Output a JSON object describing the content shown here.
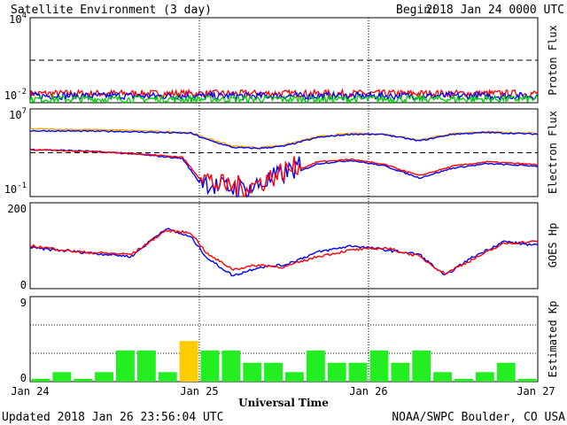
{
  "header": {
    "title": "Satellite Environment (3 day)",
    "begin_label": "Begin:",
    "begin_date": "2018 Jan 24 0000 UTC"
  },
  "footer": {
    "updated": "Updated 2018 Jan 26 23:56:04 UTC",
    "credit": "NOAA/SWPC Boulder, CO USA"
  },
  "x_axis": {
    "label": "Universal Time",
    "ticks": [
      "Jan 24",
      "Jan 25",
      "Jan 26",
      "Jan 27"
    ],
    "range_days": [
      0,
      3
    ],
    "day_dividers": [
      1,
      2
    ]
  },
  "colors": {
    "red": "#ff0000",
    "blue": "#0000ff",
    "green": "#00cc00",
    "orange": "#ffa500",
    "kp_quiet": "#22ee22",
    "kp_unsettled": "#ffcc00"
  },
  "chart_data": [
    {
      "id": "proton",
      "type": "line",
      "ylabel": "Proton Flux",
      "scale": "log",
      "ylim": [
        0.01,
        10000
      ],
      "yticks": [
        {
          "base": "10",
          "exp": "4"
        },
        {
          "base": "10",
          "exp": "-2"
        }
      ],
      "threshold": 10,
      "series": [
        {
          "color": "#ff0000",
          "level": 0.045
        },
        {
          "color": "#0000ff",
          "level": 0.03
        },
        {
          "color": "#00cc00",
          "level": 0.018
        }
      ]
    },
    {
      "id": "electron",
      "type": "line",
      "ylabel": "Electron Flux",
      "scale": "log",
      "ylim": [
        0.1,
        10000000
      ],
      "yticks": [
        {
          "base": "10",
          "exp": "7"
        },
        {
          "base": "10",
          "exp": "-1"
        }
      ],
      "threshold": 1000,
      "series": [
        {
          "color": "#ffa500",
          "x": [
            0,
            0.5,
            0.95,
            1.05,
            1.2,
            1.35,
            1.5,
            1.7,
            1.9,
            2.1,
            2.3,
            2.5,
            2.7,
            3.0
          ],
          "y": [
            150000,
            120000,
            70000,
            20000,
            4000,
            3000,
            5000,
            30000,
            60000,
            50000,
            15000,
            60000,
            80000,
            60000
          ]
        },
        {
          "color": "#0000ff",
          "x": [
            0,
            0.5,
            0.95,
            1.05,
            1.2,
            1.35,
            1.5,
            1.7,
            1.9,
            2.1,
            2.3,
            2.5,
            2.7,
            3.0
          ],
          "y": [
            100000,
            90000,
            60000,
            15000,
            3000,
            2500,
            4000,
            25000,
            50000,
            45000,
            12000,
            50000,
            70000,
            50000
          ]
        },
        {
          "color": "#0000ff",
          "x": [
            0,
            0.3,
            0.6,
            0.9,
            1.0,
            1.1,
            1.3,
            1.5,
            1.7,
            1.9,
            2.1,
            2.3,
            2.5,
            2.7,
            3.0
          ],
          "y": [
            2000,
            1500,
            800,
            300,
            2,
            0.3,
            0.2,
            5,
            100,
            200,
            60,
            5,
            40,
            100,
            60
          ]
        },
        {
          "color": "#ff0000",
          "x": [
            0,
            0.3,
            0.6,
            0.9,
            1.0,
            1.1,
            1.3,
            1.5,
            1.7,
            1.9,
            2.1,
            2.3,
            2.5,
            2.7,
            3.0
          ],
          "y": [
            1800,
            1400,
            900,
            400,
            5,
            0.5,
            0.3,
            8,
            150,
            250,
            80,
            8,
            60,
            150,
            80
          ]
        }
      ]
    },
    {
      "id": "hp",
      "type": "line",
      "ylabel": "GOES Hp",
      "scale": "linear",
      "ylim": [
        0,
        200
      ],
      "yticks": [
        {
          "value": "200"
        },
        {
          "value": "0"
        }
      ],
      "series": [
        {
          "color": "#0000ff",
          "x": [
            0,
            0.3,
            0.6,
            0.8,
            0.95,
            1.05,
            1.2,
            1.35,
            1.5,
            1.7,
            1.9,
            2.1,
            2.3,
            2.45,
            2.6,
            2.8,
            3.0
          ],
          "y": [
            95,
            85,
            75,
            140,
            120,
            70,
            30,
            50,
            55,
            85,
            100,
            90,
            80,
            30,
            70,
            110,
            100
          ]
        },
        {
          "color": "#ff0000",
          "x": [
            0,
            0.3,
            0.6,
            0.8,
            0.95,
            1.05,
            1.2,
            1.35,
            1.5,
            1.7,
            1.9,
            2.1,
            2.3,
            2.45,
            2.6,
            2.8,
            3.0
          ],
          "y": [
            100,
            85,
            80,
            135,
            130,
            80,
            45,
            55,
            50,
            75,
            90,
            95,
            75,
            35,
            65,
            105,
            110
          ]
        }
      ]
    },
    {
      "id": "kp",
      "type": "bar",
      "ylabel": "Estimated Kp",
      "ylim": [
        0,
        9
      ],
      "yticks": [
        {
          "value": "9"
        },
        {
          "value": "0"
        }
      ],
      "values": [
        0.3,
        1,
        0.3,
        1,
        3.3,
        3.3,
        1,
        4.3,
        3.3,
        3.3,
        2,
        2,
        1,
        3.3,
        2,
        2,
        3.3,
        2,
        3.3,
        1,
        0.3,
        1,
        2,
        0.3
      ],
      "colors": [
        "#22ee22",
        "#22ee22",
        "#22ee22",
        "#22ee22",
        "#22ee22",
        "#22ee22",
        "#22ee22",
        "#ffcc00",
        "#22ee22",
        "#22ee22",
        "#22ee22",
        "#22ee22",
        "#22ee22",
        "#22ee22",
        "#22ee22",
        "#22ee22",
        "#22ee22",
        "#22ee22",
        "#22ee22",
        "#22ee22",
        "#22ee22",
        "#22ee22",
        "#22ee22",
        "#22ee22"
      ]
    }
  ]
}
